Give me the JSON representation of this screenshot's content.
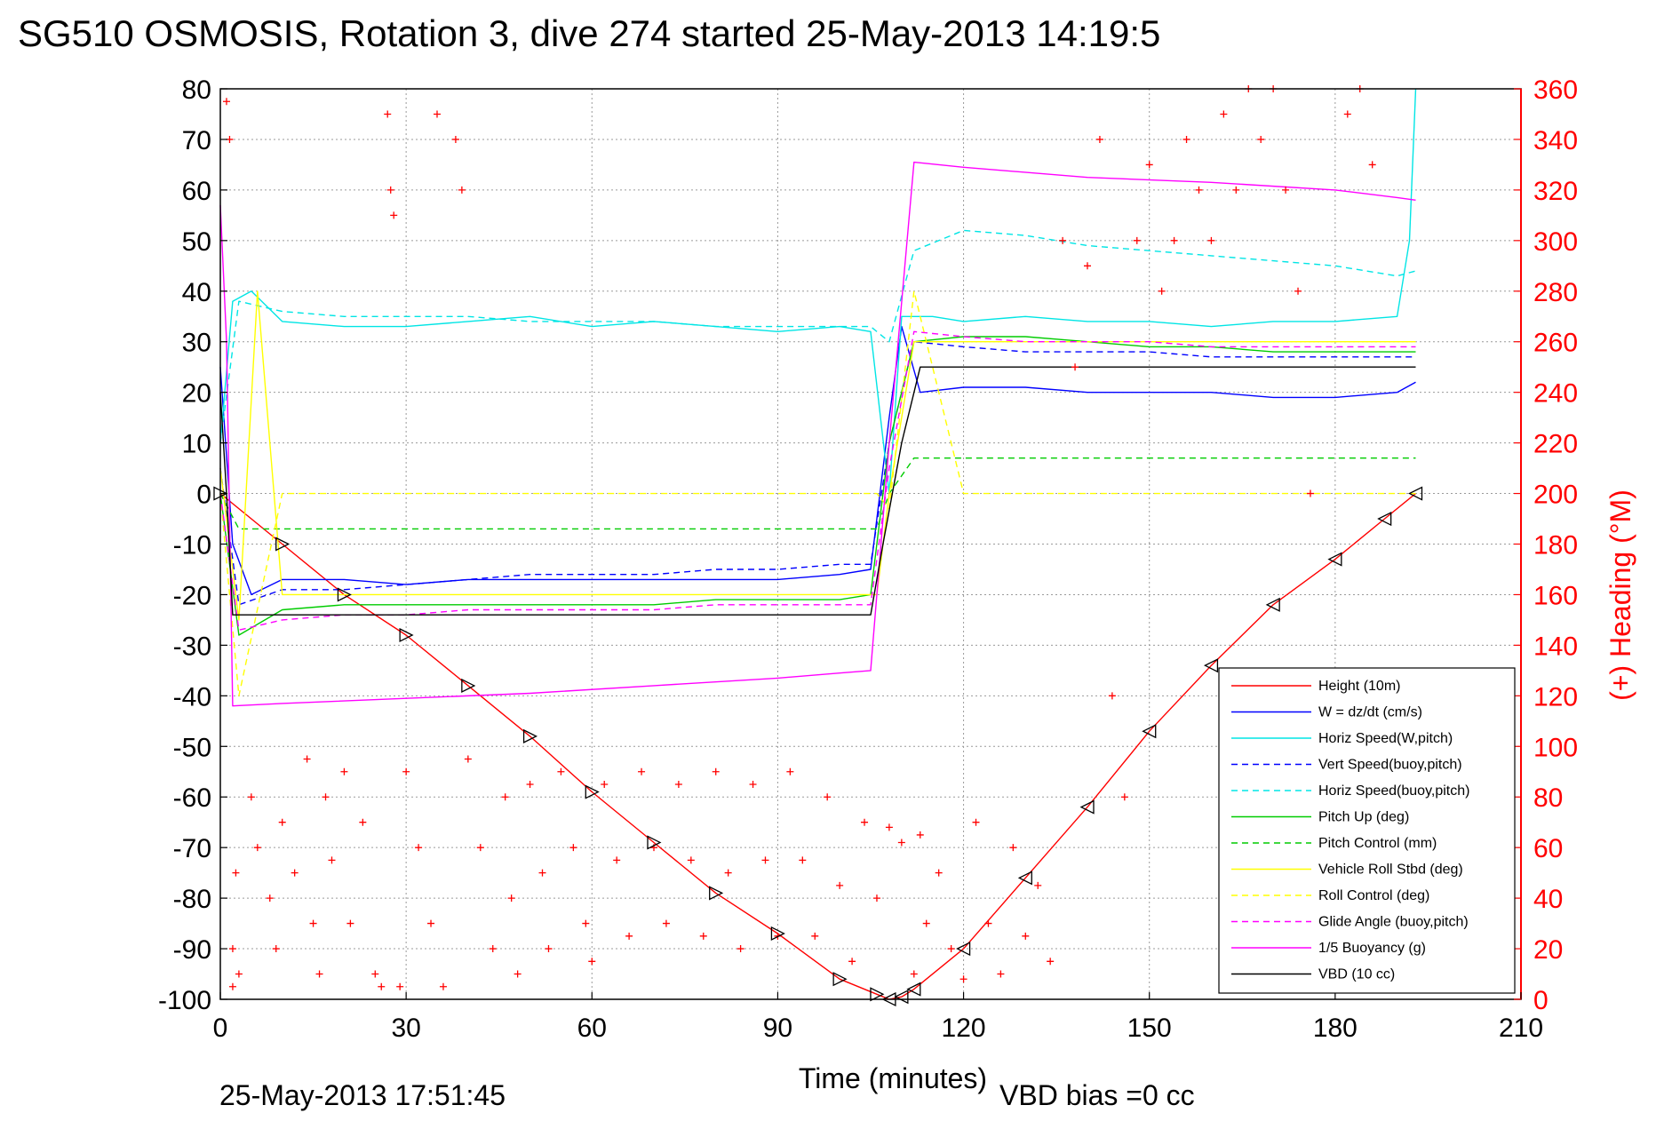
{
  "chart_data": {
    "type": "line",
    "title": "SG510 OSMOSIS, Rotation 3, dive 274 started 25-May-2013 14:19:5",
    "xlabel": "Time (minutes)",
    "ylabel": "",
    "ylabel_right": "(+) Heading (°M)",
    "xlim": [
      0,
      210
    ],
    "ylim": [
      -100,
      80
    ],
    "ylim_right": [
      0,
      360
    ],
    "xticks": [
      "0",
      "30",
      "60",
      "90",
      "120",
      "150",
      "180",
      "210"
    ],
    "yticks": [
      "80",
      "70",
      "60",
      "50",
      "40",
      "30",
      "20",
      "10",
      "0",
      "-10",
      "-20",
      "-30",
      "-40",
      "-50",
      "-60",
      "-70",
      "-80",
      "-90",
      "-100"
    ],
    "yticks_right": [
      "360",
      "340",
      "320",
      "300",
      "280",
      "260",
      "240",
      "220",
      "200",
      "180",
      "160",
      "140",
      "120",
      "100",
      "80",
      "60",
      "40",
      "20",
      "0"
    ],
    "grid": true,
    "legend_position": "bottom-right",
    "footer_date": "25-May-2013 17:51:45",
    "footer_bias": "VBD bias =0 cc",
    "series": [
      {
        "name": "Height (10m)",
        "color": "#ff0000",
        "style": "solid",
        "x": [
          0,
          10,
          20,
          30,
          40,
          50,
          60,
          70,
          80,
          90,
          100,
          106,
          108,
          110,
          112,
          120,
          130,
          140,
          150,
          160,
          170,
          180,
          188,
          193
        ],
        "y": [
          0,
          -10,
          -20,
          -28,
          -38,
          -48,
          -59,
          -69,
          -79,
          -87,
          -96,
          -99,
          -100,
          -99.5,
          -98,
          -90,
          -76,
          -62,
          -47,
          -34,
          -22,
          -13,
          -5,
          0
        ]
      },
      {
        "name": "W = dz/dt (cm/s)",
        "color": "#0000ff",
        "style": "solid",
        "x": [
          0,
          2,
          5,
          10,
          20,
          30,
          40,
          50,
          60,
          70,
          80,
          90,
          100,
          105,
          108,
          110,
          113,
          120,
          130,
          140,
          150,
          160,
          170,
          180,
          190,
          193
        ],
        "y": [
          25,
          -10,
          -20,
          -17,
          -17,
          -18,
          -17,
          -17,
          -17,
          -17,
          -17,
          -17,
          -16,
          -15,
          15,
          33,
          20,
          21,
          21,
          20,
          20,
          20,
          19,
          19,
          20,
          22
        ]
      },
      {
        "name": "Horiz Speed(W,pitch)",
        "color": "#00e5e5",
        "style": "solid",
        "x": [
          0,
          2,
          5,
          10,
          20,
          30,
          40,
          50,
          60,
          70,
          80,
          90,
          100,
          105,
          108,
          110,
          115,
          120,
          130,
          140,
          150,
          160,
          170,
          180,
          190,
          192,
          193
        ],
        "y": [
          10,
          38,
          40,
          34,
          33,
          33,
          34,
          35,
          33,
          34,
          33,
          32,
          33,
          32,
          0,
          35,
          35,
          34,
          35,
          34,
          34,
          33,
          34,
          34,
          35,
          50,
          80
        ]
      },
      {
        "name": "Vert Speed(buoy,pitch)",
        "color": "#0000ff",
        "style": "dashed",
        "x": [
          0,
          3,
          10,
          20,
          30,
          40,
          50,
          60,
          70,
          80,
          90,
          100,
          105,
          108,
          112,
          120,
          130,
          140,
          150,
          160,
          170,
          180,
          190,
          193
        ],
        "y": [
          5,
          -22,
          -19,
          -19,
          -18,
          -17,
          -16,
          -16,
          -16,
          -15,
          -15,
          -14,
          -14,
          10,
          30,
          29,
          28,
          28,
          28,
          27,
          27,
          27,
          27,
          27
        ]
      },
      {
        "name": "Horiz Speed(buoy,pitch)",
        "color": "#00e5e5",
        "style": "dashed",
        "x": [
          0,
          3,
          10,
          20,
          30,
          40,
          50,
          60,
          70,
          80,
          90,
          100,
          105,
          108,
          112,
          120,
          130,
          140,
          150,
          160,
          170,
          180,
          190,
          193
        ],
        "y": [
          10,
          38,
          36,
          35,
          35,
          35,
          34,
          34,
          34,
          33,
          33,
          33,
          33,
          30,
          48,
          52,
          51,
          49,
          48,
          47,
          46,
          45,
          43,
          44
        ]
      },
      {
        "name": "Pitch Up (deg)",
        "color": "#00cc00",
        "style": "solid",
        "x": [
          0,
          3,
          10,
          20,
          30,
          40,
          50,
          60,
          70,
          80,
          90,
          100,
          105,
          108,
          112,
          120,
          130,
          140,
          150,
          160,
          170,
          180,
          190,
          193
        ],
        "y": [
          0,
          -28,
          -23,
          -22,
          -22,
          -22,
          -22,
          -22,
          -22,
          -21,
          -21,
          -21,
          -20,
          10,
          30,
          31,
          31,
          30,
          29,
          29,
          28,
          28,
          28,
          28
        ]
      },
      {
        "name": "Pitch Control (mm)",
        "color": "#00cc00",
        "style": "dashed",
        "x": [
          0,
          3,
          10,
          20,
          30,
          40,
          50,
          60,
          70,
          80,
          90,
          100,
          106,
          108,
          112,
          120,
          130,
          140,
          150,
          160,
          170,
          180,
          190,
          193
        ],
        "y": [
          0,
          -7,
          -7,
          -7,
          -7,
          -7,
          -7,
          -7,
          -7,
          -7,
          -7,
          -7,
          -7,
          0,
          7,
          7,
          7,
          7,
          7,
          7,
          7,
          7,
          7,
          7
        ]
      },
      {
        "name": "Vehicle Roll Stbd (deg)",
        "color": "#ffff00",
        "style": "solid",
        "x": [
          0,
          3,
          6,
          10,
          20,
          30,
          40,
          50,
          60,
          70,
          80,
          90,
          100,
          106,
          108,
          112,
          120,
          130,
          140,
          150,
          160,
          170,
          180,
          190,
          193
        ],
        "y": [
          5,
          -25,
          40,
          -20,
          -20,
          -20,
          -20,
          -20,
          -20,
          -20,
          -20,
          -20,
          -20,
          -20,
          0,
          30,
          30,
          30,
          30,
          30,
          30,
          30,
          30,
          30,
          30
        ]
      },
      {
        "name": "Roll Control (deg)",
        "color": "#ffff00",
        "style": "dashed",
        "x": [
          0,
          3,
          10,
          20,
          30,
          40,
          50,
          60,
          70,
          80,
          90,
          100,
          106,
          108,
          112,
          120,
          130,
          140,
          150,
          160,
          170,
          180,
          190,
          193
        ],
        "y": [
          0,
          -40,
          0,
          0,
          0,
          0,
          0,
          0,
          0,
          0,
          0,
          0,
          0,
          -3,
          40,
          0,
          0,
          0,
          0,
          0,
          0,
          0,
          0,
          0
        ]
      },
      {
        "name": "Glide Angle (buoy,pitch)",
        "color": "#ff00ff",
        "style": "dashed",
        "x": [
          0,
          3,
          10,
          20,
          30,
          40,
          50,
          60,
          70,
          80,
          90,
          100,
          105,
          108,
          112,
          120,
          130,
          140,
          150,
          160,
          170,
          180,
          190,
          193
        ],
        "y": [
          0,
          -27,
          -25,
          -24,
          -24,
          -23,
          -23,
          -23,
          -23,
          -22,
          -22,
          -22,
          -22,
          5,
          32,
          31,
          30,
          30,
          30,
          29,
          29,
          29,
          29,
          29
        ]
      },
      {
        "name": "1/5 Buoyancy (g)",
        "color": "#ff00ff",
        "style": "solid",
        "x": [
          0,
          1,
          2,
          10,
          30,
          50,
          70,
          90,
          100,
          105,
          108,
          112,
          120,
          140,
          160,
          180,
          190,
          193
        ],
        "y": [
          57,
          30,
          -42,
          -41.5,
          -40.5,
          -39.5,
          -38,
          -36.5,
          -35.5,
          -35,
          10,
          65.5,
          64.5,
          62.5,
          61.5,
          60,
          58.5,
          58
        ]
      },
      {
        "name": "VBD (10 cc)",
        "color": "#000000",
        "style": "solid",
        "x": [
          0,
          1,
          2,
          5,
          30,
          60,
          90,
          105,
          107,
          110,
          113,
          120,
          150,
          180,
          190,
          193
        ],
        "y": [
          20,
          0,
          -24,
          -24,
          -24,
          -24,
          -24,
          -24,
          -10,
          10,
          25,
          25,
          25,
          25,
          25,
          25
        ]
      }
    ],
    "heading_points": {
      "name": "(+) Heading (°M)",
      "color": "#ff0000",
      "x": [
        1,
        1.5,
        2,
        2,
        2.5,
        3,
        5,
        6,
        8,
        9,
        10,
        12,
        14,
        15,
        16,
        17,
        18,
        20,
        21,
        23,
        25,
        26,
        27,
        27.5,
        28,
        29,
        30,
        32,
        34,
        35,
        36,
        38,
        39,
        40,
        42,
        44,
        46,
        47,
        48,
        50,
        52,
        53,
        55,
        57,
        59,
        60,
        62,
        64,
        66,
        68,
        70,
        72,
        74,
        76,
        78,
        80,
        82,
        84,
        86,
        88,
        90,
        92,
        94,
        96,
        98,
        100,
        102,
        104,
        106,
        108,
        110,
        112,
        113,
        114,
        116,
        118,
        120,
        122,
        124,
        126,
        128,
        130,
        132,
        134,
        136,
        138,
        140,
        142,
        144,
        146,
        148,
        150,
        152,
        154,
        156,
        158,
        160,
        162,
        164,
        166,
        168,
        170,
        172,
        174,
        176,
        178,
        180,
        182,
        184,
        186
      ],
      "y": [
        355,
        340,
        20,
        5,
        50,
        10,
        80,
        60,
        40,
        20,
        70,
        50,
        95,
        30,
        10,
        80,
        55,
        90,
        30,
        70,
        10,
        5,
        350,
        320,
        310,
        5,
        90,
        60,
        30,
        350,
        5,
        340,
        320,
        95,
        60,
        20,
        80,
        40,
        10,
        85,
        50,
        20,
        90,
        60,
        30,
        15,
        85,
        55,
        25,
        90,
        60,
        30,
        85,
        55,
        25,
        90,
        50,
        20,
        85,
        55,
        25,
        90,
        55,
        25,
        80,
        45,
        15,
        70,
        40,
        68,
        62,
        10,
        65,
        30,
        50,
        20,
        8,
        70,
        30,
        10,
        60,
        25,
        45,
        15,
        300,
        250,
        290,
        340,
        120,
        80,
        300,
        330,
        280,
        300,
        340,
        320,
        300,
        350,
        320,
        360,
        340,
        360,
        320,
        280,
        200,
        120,
        10,
        350,
        360,
        330
      ]
    }
  },
  "legend": {
    "items": [
      {
        "label": "Height (10m)",
        "color": "#ff0000",
        "dash": "solid"
      },
      {
        "label": "W = dz/dt (cm/s)",
        "color": "#0000ff",
        "dash": "solid"
      },
      {
        "label": "Horiz Speed(W,pitch)",
        "color": "#00e5e5",
        "dash": "solid"
      },
      {
        "label": "Vert Speed(buoy,pitch)",
        "color": "#0000ff",
        "dash": "dashed"
      },
      {
        "label": "Horiz Speed(buoy,pitch)",
        "color": "#00e5e5",
        "dash": "dashed"
      },
      {
        "label": "Pitch Up (deg)",
        "color": "#00cc00",
        "dash": "solid"
      },
      {
        "label": "Pitch Control (mm)",
        "color": "#00cc00",
        "dash": "dashed"
      },
      {
        "label": "Vehicle Roll Stbd (deg)",
        "color": "#ffff00",
        "dash": "solid"
      },
      {
        "label": "Roll Control (deg)",
        "color": "#ffff00",
        "dash": "dashed"
      },
      {
        "label": "Glide Angle (buoy,pitch)",
        "color": "#ff00ff",
        "dash": "dashed"
      },
      {
        "label": "1/5 Buoyancy (g)",
        "color": "#ff00ff",
        "dash": "solid"
      },
      {
        "label": "VBD (10 cc)",
        "color": "#000000",
        "dash": "solid"
      }
    ]
  }
}
